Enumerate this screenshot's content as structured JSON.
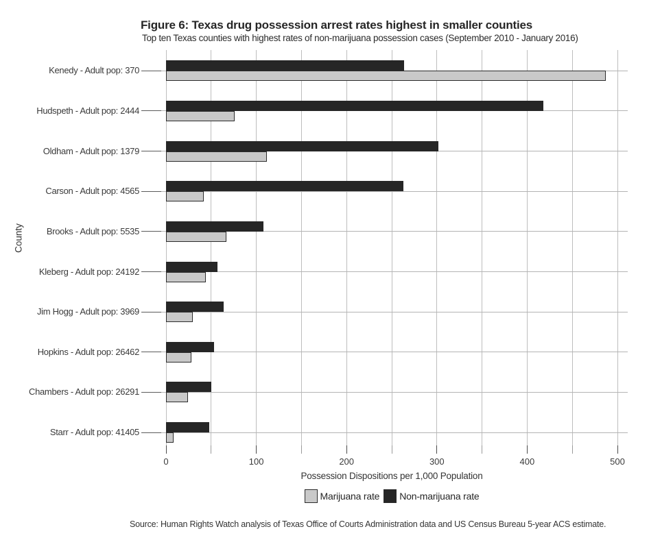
{
  "header": {
    "title": "Figure 6: Texas drug possession arrest rates highest in smaller counties",
    "subtitle": "Top ten Texas counties with highest rates of non-marijuana possession cases (September 2010 - January 2016)"
  },
  "chart_data": {
    "type": "bar",
    "orientation": "horizontal",
    "title": "Figure 6: Texas drug possession arrest rates highest in smaller counties",
    "subtitle": "Top ten Texas counties with highest rates of non-marijuana possession cases (September 2010 - January 2016)",
    "xlabel": "Possession Dispositions per 1,000 Population",
    "ylabel": "County",
    "xlim": [
      0,
      500
    ],
    "x_major_ticks": [
      0,
      100,
      200,
      300,
      400,
      500
    ],
    "x_minor_ticks": [
      50,
      150,
      250,
      350,
      450
    ],
    "grid": true,
    "legend_position": "bottom",
    "categories": [
      "Kenedy - Adult pop: 370",
      "Hudspeth - Adult pop: 2444",
      "Oldham - Adult pop: 1379",
      "Carson - Adult pop: 4565",
      "Brooks - Adult pop: 5535",
      "Kleberg - Adult pop: 24192",
      "Jim Hogg - Adult pop: 3969",
      "Hopkins - Adult pop: 26462",
      "Chambers - Adult pop: 26291",
      "Starr - Adult pop: 41405"
    ],
    "series": [
      {
        "name": "Marijuana rate",
        "color": "#c9c9c9",
        "values": [
          487,
          76,
          112,
          42,
          67,
          44,
          30,
          28,
          24,
          8
        ]
      },
      {
        "name": "Non-marijuana rate",
        "color": "#262626",
        "values": [
          264,
          418,
          302,
          263,
          108,
          57,
          64,
          53,
          50,
          48
        ]
      }
    ]
  },
  "legend": {
    "items": [
      {
        "label": "Marijuana rate",
        "color": "#c9c9c9"
      },
      {
        "label": "Non-marijuana rate",
        "color": "#262626"
      }
    ]
  },
  "footer": {
    "source": "Source: Human Rights Watch analysis of Texas Office of Courts Administration data and US Census Bureau 5-year ACS estimate."
  },
  "colors": {
    "grid": "#bdbdbd",
    "row_grid": "#b3b3b3",
    "tick_major": "#4a4a4a",
    "tick_minor": "#9a9a9a",
    "bar_outline": "#2b2b2b",
    "text": "#262626",
    "axis_text": "#3a3a3a",
    "background": "#ffffff"
  }
}
